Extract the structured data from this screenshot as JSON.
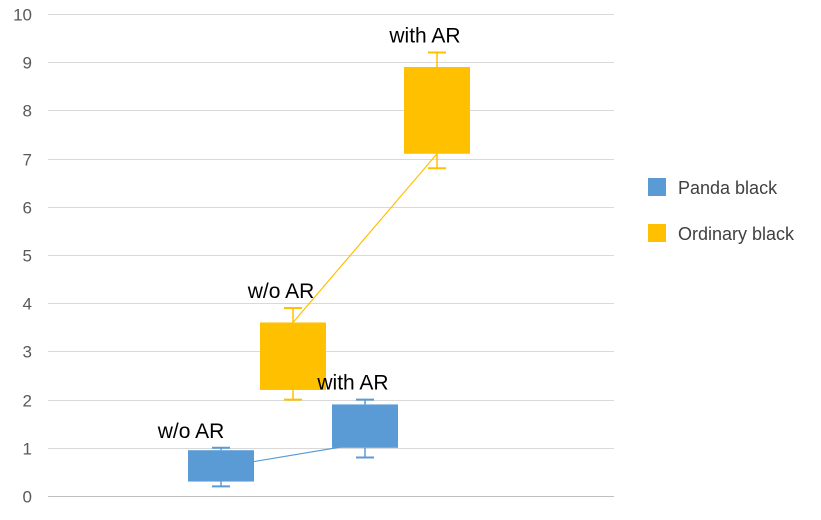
{
  "chart_data": {
    "type": "box",
    "ylim": [
      0,
      10
    ],
    "yticks": [
      0,
      1,
      2,
      3,
      4,
      5,
      6,
      7,
      8,
      9,
      10
    ],
    "grid": true,
    "legend_position": "right",
    "series": [
      {
        "name": "Panda black",
        "color": "#5b9bd5",
        "boxes": [
          {
            "label": "w/o AR",
            "min": 0.2,
            "q1": 0.3,
            "median": 0.6,
            "q3": 0.95,
            "max": 1.0
          },
          {
            "label": "with AR",
            "min": 0.8,
            "q1": 1.0,
            "median": 1.1,
            "q3": 1.9,
            "max": 2.0
          }
        ]
      },
      {
        "name": "Ordinary black",
        "color": "#ffc000",
        "boxes": [
          {
            "label": "w/o AR",
            "min": 2.0,
            "q1": 2.2,
            "median": 3.6,
            "q3": 3.6,
            "max": 3.9
          },
          {
            "label": "with AR",
            "min": 6.8,
            "q1": 7.1,
            "median": 7.1,
            "q3": 8.9,
            "max": 9.2
          }
        ]
      }
    ]
  }
}
